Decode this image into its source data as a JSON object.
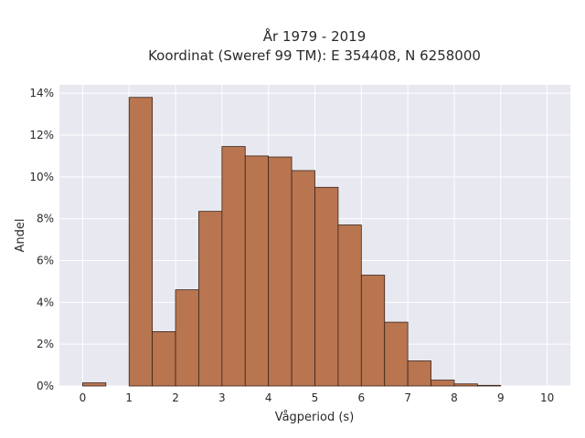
{
  "chart_data": {
    "type": "bar",
    "title_line1": "År 1979 - 2019",
    "title_line2": "Koordinat (Sweref 99 TM): E 354408, N 6258000",
    "xlabel": "Vågperiod (s)",
    "ylabel": "Andel",
    "xlim": [
      -0.5,
      10.5
    ],
    "ylim": [
      0,
      14.4
    ],
    "xticks": [
      "0",
      "1",
      "2",
      "3",
      "4",
      "5",
      "6",
      "7",
      "8",
      "9",
      "10"
    ],
    "yticks": [
      "0%",
      "2%",
      "4%",
      "6%",
      "8%",
      "10%",
      "12%",
      "14%"
    ],
    "bin_width": 0.5,
    "bins": [
      {
        "start": 0.0,
        "value": 0.15
      },
      {
        "start": 0.5,
        "value": 0.0
      },
      {
        "start": 1.0,
        "value": 13.8
      },
      {
        "start": 1.5,
        "value": 2.6
      },
      {
        "start": 2.0,
        "value": 4.6
      },
      {
        "start": 2.5,
        "value": 8.35
      },
      {
        "start": 3.0,
        "value": 11.45
      },
      {
        "start": 3.5,
        "value": 11.0
      },
      {
        "start": 4.0,
        "value": 10.95
      },
      {
        "start": 4.5,
        "value": 10.3
      },
      {
        "start": 5.0,
        "value": 9.5
      },
      {
        "start": 5.5,
        "value": 7.7
      },
      {
        "start": 6.0,
        "value": 5.3
      },
      {
        "start": 6.5,
        "value": 3.05
      },
      {
        "start": 7.0,
        "value": 1.2
      },
      {
        "start": 7.5,
        "value": 0.28
      },
      {
        "start": 8.0,
        "value": 0.1
      },
      {
        "start": 8.5,
        "value": 0.03
      },
      {
        "start": 9.0,
        "value": 0.0
      },
      {
        "start": 9.5,
        "value": 0.0
      }
    ],
    "grid": true,
    "colors": {
      "bar_fill": "#b87550",
      "bar_stroke": "#3a2418",
      "plot_bg": "#e8e8f0",
      "grid": "#ffffff"
    }
  }
}
